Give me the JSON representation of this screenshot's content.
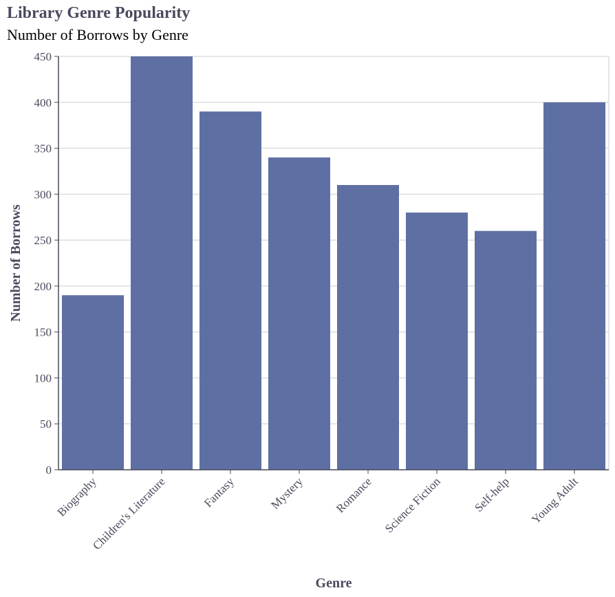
{
  "chart_data": {
    "type": "bar",
    "title": "Library Genre Popularity",
    "subtitle": "Number of Borrows by Genre",
    "xlabel": "Genre",
    "ylabel": "Number of Borrows",
    "categories": [
      "Biography",
      "Children's Literature",
      "Fantasy",
      "Mystery",
      "Romance",
      "Science Fiction",
      "Self-help",
      "Young Adult"
    ],
    "values": [
      190,
      450,
      390,
      340,
      310,
      280,
      260,
      400
    ],
    "ylim": [
      0,
      450
    ],
    "yticks": [
      0,
      50,
      100,
      150,
      200,
      250,
      300,
      350,
      400,
      450
    ],
    "ytick_labels": [
      "0",
      "50",
      "100",
      "150",
      "200",
      "250",
      "300",
      "350",
      "400",
      "450"
    ],
    "grid": true,
    "bar_color": "#5e70a3",
    "text_color": "#4a4a5e",
    "grid_color": "#dddddd"
  }
}
